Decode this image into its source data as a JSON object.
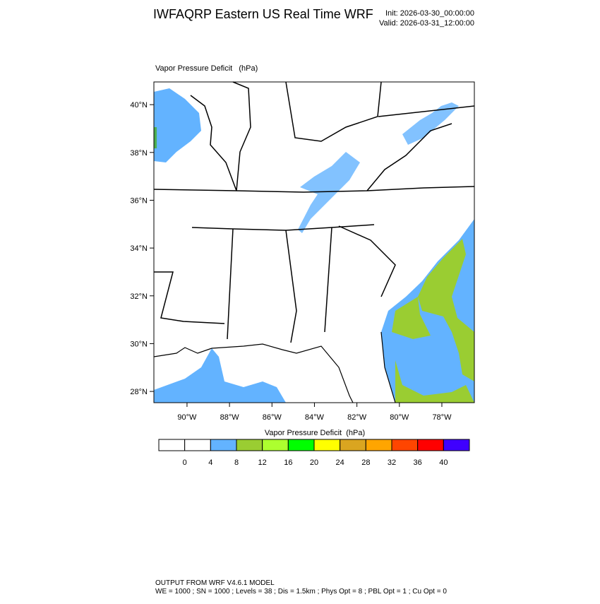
{
  "header": {
    "title": "IWFAQRP Eastern US Real Time WRF",
    "init": "Init: 2026-03-30_00:00:00",
    "valid": "Valid: 2026-03-31_12:00:00"
  },
  "map": {
    "title": "Vapor Pressure Deficit   (hPa)",
    "lon_range": [
      -91.56,
      -76.47
    ],
    "lat_range": [
      27.53,
      40.95
    ],
    "lat_ticks": [
      {
        "value": 28,
        "label": "28°N"
      },
      {
        "value": 30,
        "label": "30°N"
      },
      {
        "value": 32,
        "label": "32°N"
      },
      {
        "value": 34,
        "label": "34°N"
      },
      {
        "value": 36,
        "label": "36°N"
      },
      {
        "value": 38,
        "label": "38°N"
      },
      {
        "value": 40,
        "label": "40°N"
      }
    ],
    "lon_ticks": [
      {
        "value": -90,
        "label": "90°W"
      },
      {
        "value": -88,
        "label": "88°W"
      },
      {
        "value": -86,
        "label": "86°W"
      },
      {
        "value": -84,
        "label": "84°W"
      },
      {
        "value": -82,
        "label": "82°W"
      },
      {
        "value": -80,
        "label": "80°W"
      },
      {
        "value": -78,
        "label": "78°W"
      }
    ]
  },
  "colorbar": {
    "title": "Vapor Pressure Deficit  (hPa)",
    "levels": [
      0,
      4,
      8,
      12,
      16,
      20,
      24,
      28,
      32,
      36,
      40
    ],
    "colors": [
      "#ffffff",
      "#ffffff",
      "#63b3ff",
      "#9acd32",
      "#adff2f",
      "#00ff00",
      "#ffff00",
      "#daa520",
      "#ffa500",
      "#ff4500",
      "#ff0000",
      "#3f00ff"
    ]
  },
  "footer": {
    "line1": "OUTPUT FROM WRF V4.6.1 MODEL",
    "line2": "WE = 1000 ; SN = 1000 ; Levels = 38 ; Dis = 1.5km ; Phys Opt = 8 ; PBL Opt = 1 ; Cu Opt = 0"
  }
}
